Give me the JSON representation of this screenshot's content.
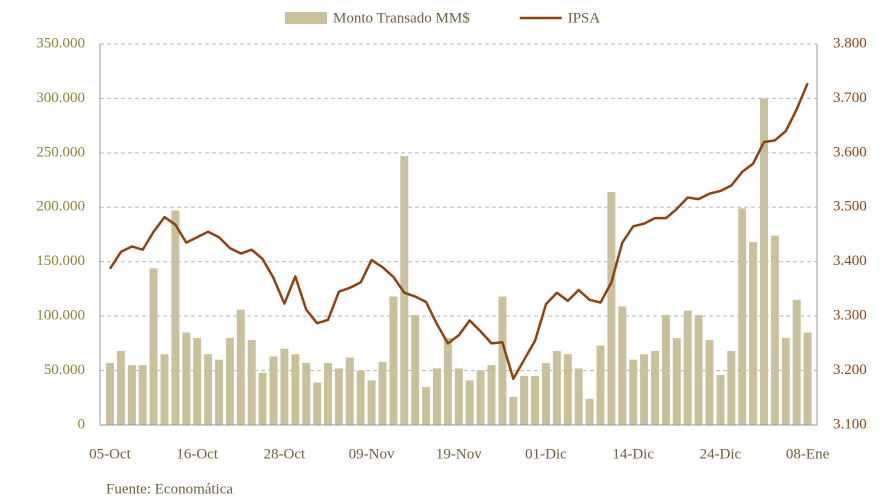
{
  "chart_data": {
    "type": "bar_line",
    "categories": [
      "05-Oct",
      null,
      null,
      null,
      null,
      null,
      null,
      null,
      "16-Oct",
      null,
      null,
      null,
      null,
      null,
      null,
      null,
      "28-Oct",
      null,
      null,
      null,
      null,
      null,
      null,
      null,
      "09-Nov",
      null,
      null,
      null,
      null,
      null,
      null,
      null,
      "19-Nov",
      null,
      null,
      null,
      null,
      null,
      null,
      null,
      "01-Dic",
      null,
      null,
      null,
      null,
      null,
      null,
      null,
      "14-Dic",
      null,
      null,
      null,
      null,
      null,
      null,
      null,
      "24-Dic",
      null,
      null,
      null,
      null,
      null,
      null,
      null,
      "08-Ene"
    ],
    "series": [
      {
        "name": "Monto Transado MM$",
        "type": "bar",
        "color": "#c9c09c",
        "axis": "y",
        "values": [
          57000,
          68000,
          55000,
          55000,
          144000,
          65000,
          197000,
          85000,
          80000,
          65000,
          60000,
          80000,
          106000,
          78000,
          48000,
          63000,
          70000,
          65000,
          57000,
          39000,
          57000,
          52000,
          62000,
          50000,
          41000,
          58000,
          118000,
          247000,
          101000,
          35000,
          52000,
          80000,
          52000,
          41000,
          50000,
          55000,
          118000,
          26000,
          45000,
          45000,
          57000,
          68000,
          65000,
          52000,
          24000,
          73000,
          214000,
          109000,
          60000,
          65000,
          68000,
          101000,
          80000,
          105000,
          101000,
          78000,
          46000,
          68000,
          199000,
          168000,
          300000,
          174000,
          80000,
          115000,
          85000
        ]
      },
      {
        "name": "IPSA",
        "type": "line",
        "color": "#8b4513",
        "axis": "y2",
        "values": [
          3387,
          3418,
          3428,
          3422,
          3455,
          3482,
          3468,
          3435,
          3445,
          3455,
          3445,
          3425,
          3415,
          3422,
          3405,
          3370,
          3323,
          3373,
          3312,
          3287,
          3293,
          3345,
          3352,
          3362,
          3403,
          3390,
          3372,
          3343,
          3336,
          3326,
          3285,
          3250,
          3265,
          3292,
          3272,
          3250,
          3252,
          3185,
          3220,
          3255,
          3322,
          3343,
          3328,
          3348,
          3330,
          3325,
          3362,
          3435,
          3465,
          3470,
          3480,
          3480,
          3497,
          3518,
          3515,
          3525,
          3530,
          3540,
          3565,
          3580,
          3620,
          3623,
          3640,
          3680,
          3728
        ]
      }
    ],
    "ylim": [
      0,
      350000
    ],
    "yticks": [
      0,
      {
        "value": 50000,
        "label": "50.000"
      },
      {
        "value": 100000,
        "label": "100.000"
      },
      {
        "value": 150000,
        "label": "150.000"
      },
      {
        "value": 200000,
        "label": "200.000"
      },
      {
        "value": 250000,
        "label": "250.000"
      },
      {
        "value": 300000,
        "label": "300.000"
      },
      {
        "value": 350000,
        "label": "350.000"
      }
    ],
    "y2lim": [
      3100,
      3800
    ],
    "y2ticks": [
      {
        "value": 3100,
        "label": "3.100"
      },
      {
        "value": 3200,
        "label": "3.200"
      },
      {
        "value": 3300,
        "label": "3.300"
      },
      {
        "value": 3400,
        "label": "3.400"
      },
      {
        "value": 3500,
        "label": "3.500"
      },
      {
        "value": 3600,
        "label": "3.600"
      },
      {
        "value": 3700,
        "label": "3.700"
      },
      {
        "value": 3800,
        "label": "3.800"
      }
    ],
    "grid": true,
    "legend": "top",
    "source": "Fuente: Economática"
  }
}
